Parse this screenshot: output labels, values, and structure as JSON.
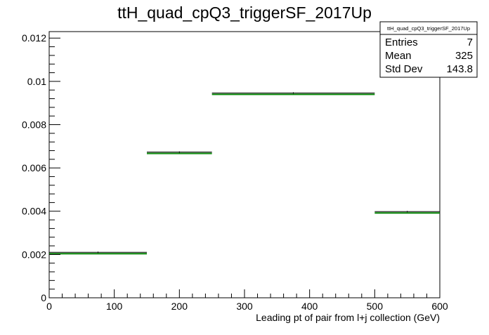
{
  "chart_data": {
    "type": "histogram",
    "title": "ttH_quad_cpQ3_triggerSF_2017Up",
    "xlabel": "Leading pt of pair from l+j collection (GeV)",
    "ylabel": "",
    "xlim": [
      0,
      600
    ],
    "ylim": [
      0,
      0.0123
    ],
    "x_ticks": [
      0,
      100,
      200,
      300,
      400,
      500,
      600
    ],
    "y_ticks": [
      0,
      0.002,
      0.004,
      0.006,
      0.008,
      0.01,
      0.012
    ],
    "x_tick_labels": [
      "0",
      "100",
      "200",
      "300",
      "400",
      "500",
      "600"
    ],
    "y_tick_labels": [
      "0",
      "0.002",
      "0.004",
      "0.006",
      "0.008",
      "0.01",
      "0.012"
    ],
    "grid": false,
    "bins": [
      {
        "x_low": 0,
        "x_high": 150,
        "value": 0.00207
      },
      {
        "x_low": 150,
        "x_high": 250,
        "value": 0.0067
      },
      {
        "x_low": 250,
        "x_high": 500,
        "value": 0.00943
      },
      {
        "x_low": 500,
        "x_high": 600,
        "value": 0.00395
      }
    ],
    "colors": {
      "line": "#008000",
      "error": "#000000",
      "frame": "#000000"
    },
    "stats_box": {
      "title": "ttH_quad_cpQ3_triggerSF_2017Up",
      "rows": [
        {
          "label": "Entries",
          "value": "7"
        },
        {
          "label": "Mean",
          "value": "325"
        },
        {
          "label": "Std Dev",
          "value": "143.8"
        }
      ],
      "placement": "top-right"
    }
  }
}
